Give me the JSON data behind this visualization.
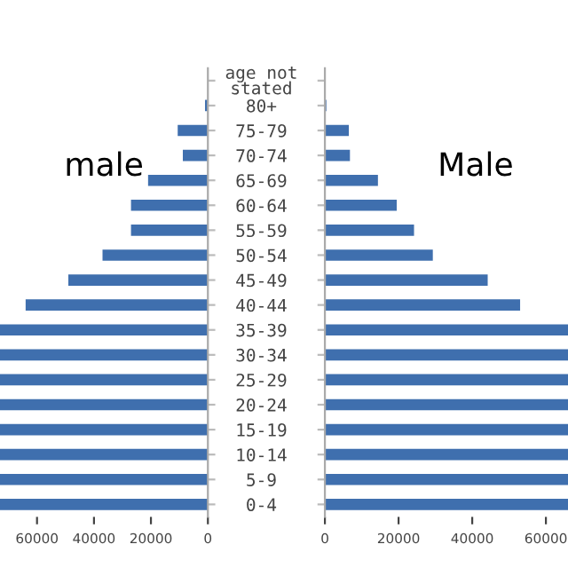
{
  "chart_data": [
    {
      "type": "bar",
      "orientation": "horizontal",
      "title": "male",
      "categories": [
        "age not\nstated",
        "80+",
        "75-79",
        "70-74",
        "65-69",
        "60-64",
        "55-59",
        "50-54",
        "45-49",
        "40-44",
        "35-39",
        "30-34",
        "25-29",
        "20-24",
        "15-19",
        "10-14",
        "5-9",
        "0-4"
      ],
      "series": [
        {
          "color": "#3f6fae",
          "values": [
            null,
            1000,
            10600,
            8800,
            21000,
            27000,
            27000,
            37000,
            49000,
            64000,
            73000,
            73000,
            73000,
            73000,
            73000,
            73000,
            73000,
            73000
          ]
        }
      ],
      "xlim": [
        73000,
        0
      ],
      "xticks": [
        60000,
        40000,
        20000,
        0
      ],
      "grid": false,
      "legend": false
    },
    {
      "type": "bar",
      "orientation": "horizontal",
      "title": "Male",
      "categories": [
        null,
        null,
        null,
        null,
        null,
        null,
        null,
        null,
        null,
        null,
        null,
        null,
        null,
        null,
        null,
        null,
        null,
        null
      ],
      "series": [
        {
          "color": "#3f6fae",
          "values": [
            null,
            400,
            6500,
            6800,
            14400,
            19500,
            24200,
            29300,
            44200,
            53000,
            66000,
            66000,
            66000,
            66000,
            66000,
            66000,
            66000,
            66000
          ]
        }
      ],
      "xlim": [
        0,
        66000
      ],
      "xticks": [
        0,
        20000,
        40000,
        60000
      ],
      "tick_labels": "x",
      "grid": false,
      "legend": false
    }
  ]
}
